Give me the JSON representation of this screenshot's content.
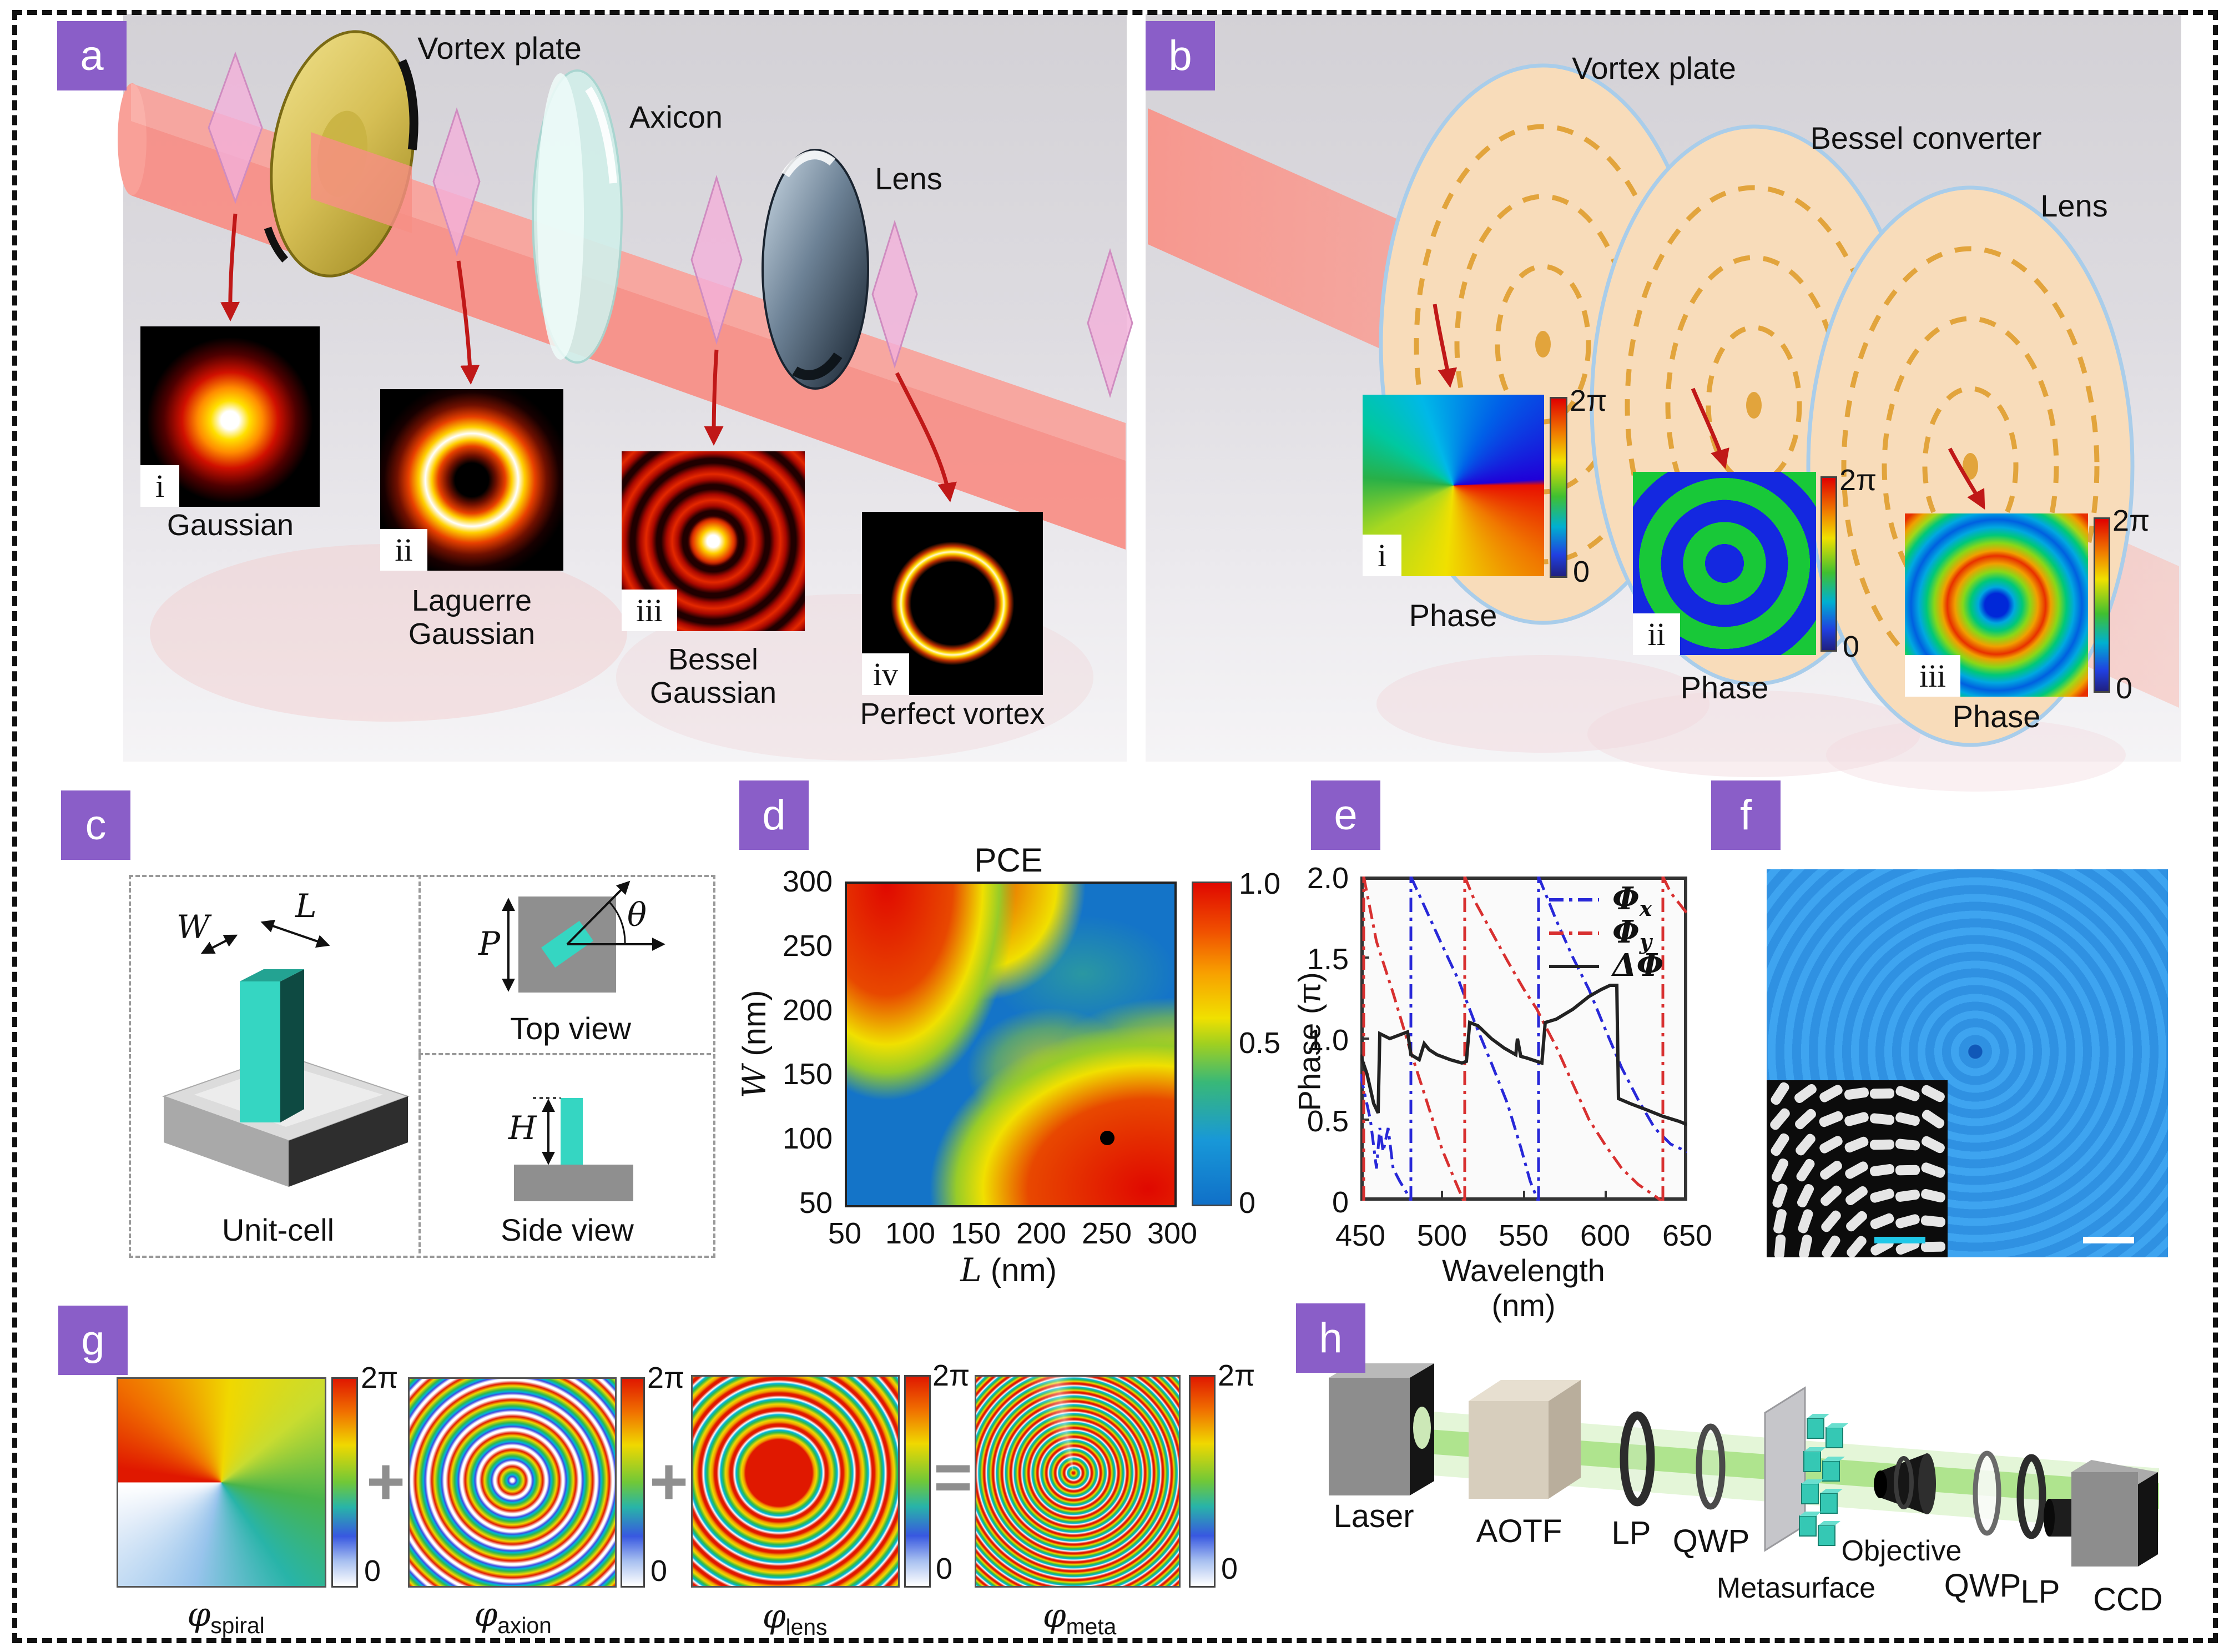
{
  "colors": {
    "accent_purple": "#8a5ec8",
    "beam_red": "#f88e85",
    "beam_green": "#a8e286",
    "metasurface_teal": "#35d6c2",
    "scene_gray": "#d3d1d6",
    "heatmap_blue": "#1474c8",
    "heatmap_red": "#e00800",
    "microscope_blue": "#3ea4f0"
  },
  "panels": {
    "a": {
      "letter": "a",
      "optics": [
        "Vortex plate",
        "Axicon",
        "Lens"
      ],
      "beams": [
        {
          "num": "i",
          "label": "Gaussian",
          "label2": ""
        },
        {
          "num": "ii",
          "label": "Laguerre",
          "label2": "Gaussian"
        },
        {
          "num": "iii",
          "label": "Bessel",
          "label2": "Gaussian"
        },
        {
          "num": "iv",
          "label": "Perfect vortex",
          "label2": ""
        }
      ]
    },
    "b": {
      "letter": "b",
      "optics": [
        "Vortex plate",
        "Bessel converter",
        "Lens"
      ],
      "phases": [
        {
          "num": "i",
          "caption": "Phase",
          "cb_max": "2π",
          "cb_min": "0"
        },
        {
          "num": "ii",
          "caption": "Phase",
          "cb_max": "2π",
          "cb_min": "0"
        },
        {
          "num": "iii",
          "caption": "Phase",
          "cb_max": "2π",
          "cb_min": "0"
        }
      ]
    },
    "c": {
      "letter": "c",
      "labels": {
        "W": "W",
        "L": "L",
        "P": "P",
        "theta": "θ",
        "H": "H"
      },
      "captions": [
        "Unit-cell",
        "Top view",
        "Side view"
      ]
    },
    "d": {
      "letter": "d",
      "title": "PCE",
      "xlabel_sym": "L",
      "xlabel_unit": "(nm)",
      "ylabel_sym": "W",
      "ylabel_unit": "(nm)",
      "xticks": [
        "50",
        "100",
        "150",
        "200",
        "250",
        "300"
      ],
      "yticks": [
        "300",
        "250",
        "200",
        "150",
        "100",
        "50"
      ],
      "cb_ticks": [
        "1.0",
        "0.5",
        "0"
      ]
    },
    "e": {
      "letter": "e",
      "xlabel": "Wavelength (nm)",
      "ylabel": "Phase (π)",
      "xticks": [
        "450",
        "500",
        "550",
        "600",
        "650"
      ],
      "yticks": [
        "2.0",
        "1.5",
        "1.0",
        "0.5",
        "0"
      ],
      "legend": [
        {
          "sym": "Φ",
          "sub": "x"
        },
        {
          "sym": "Φ",
          "sub": "y"
        },
        {
          "sym": "ΔΦ",
          "sub": ""
        }
      ]
    },
    "f": {
      "letter": "f"
    },
    "g": {
      "letter": "g",
      "terms": [
        {
          "sym": "φ",
          "sub": "spiral"
        },
        {
          "sym": "φ",
          "sub": "axion"
        },
        {
          "sym": "φ",
          "sub": "lens"
        },
        {
          "sym": "φ",
          "sub": "meta"
        }
      ],
      "operators": [
        "+",
        "+",
        "="
      ],
      "cb_max": "2π",
      "cb_min": "0"
    },
    "h": {
      "letter": "h",
      "components": [
        "Laser",
        "AOTF",
        "LP",
        "QWP",
        "Metasurface",
        "Objective",
        "QWP",
        "LP",
        "CCD"
      ]
    }
  },
  "chart_data": [
    {
      "type": "heatmap",
      "panel": "d",
      "title": "PCE",
      "xlabel": "L (nm)",
      "ylabel": "W (nm)",
      "xlim": [
        50,
        300
      ],
      "ylim": [
        50,
        300
      ],
      "colorbar": {
        "min": 0,
        "max": 1.0,
        "ticks": [
          0,
          0.5,
          1.0
        ]
      },
      "marked_point": {
        "L": 245,
        "W": 100
      },
      "grid": {
        "L": [
          50,
          100,
          150,
          200,
          250,
          300
        ],
        "W": [
          300,
          250,
          200,
          150,
          100,
          50
        ],
        "PCE": [
          [
            1.0,
            1.0,
            0.9,
            0.35,
            0.3,
            0.35
          ],
          [
            1.0,
            1.0,
            0.6,
            0.35,
            0.3,
            0.4
          ],
          [
            0.8,
            0.95,
            0.5,
            0.3,
            0.35,
            0.5
          ],
          [
            0.45,
            0.55,
            0.35,
            0.45,
            0.6,
            0.9
          ],
          [
            0.25,
            0.3,
            0.35,
            0.75,
            1.0,
            1.0
          ],
          [
            0.2,
            0.25,
            0.4,
            0.7,
            0.95,
            1.0
          ]
        ]
      }
    },
    {
      "type": "line",
      "panel": "e",
      "xlabel": "Wavelength (nm)",
      "ylabel": "Phase (π)",
      "xlim": [
        450,
        650
      ],
      "ylim": [
        0,
        2.0
      ],
      "legend_position": "top-right",
      "grid": false,
      "series": [
        {
          "name": "Φx",
          "style": "blue dash-dot",
          "points": [
            [
              450,
              0.78
            ],
            [
              456,
              0.5
            ],
            [
              460,
              0.2
            ],
            [
              462,
              0.45
            ],
            [
              467,
              0.45
            ],
            [
              470,
              0.2
            ],
            [
              478,
              0.05
            ],
            [
              481,
              0
            ],
            [
              481,
              2
            ],
            [
              500,
              1.58
            ],
            [
              520,
              1.1
            ],
            [
              540,
              0.6
            ],
            [
              554,
              0.12
            ],
            [
              559,
              0
            ],
            [
              559,
              2
            ],
            [
              570,
              1.73
            ],
            [
              590,
              1.3
            ],
            [
              610,
              0.82
            ],
            [
              630,
              0.45
            ],
            [
              650,
              0.3
            ]
          ]
        },
        {
          "name": "Φy",
          "style": "red dash-dot",
          "points": [
            [
              452,
              0
            ],
            [
              452,
              2
            ],
            [
              460,
              1.6
            ],
            [
              480,
              0.95
            ],
            [
              500,
              0.32
            ],
            [
              513,
              0
            ],
            [
              514,
              2
            ],
            [
              530,
              1.66
            ],
            [
              550,
              1.3
            ],
            [
              570,
              0.95
            ],
            [
              590,
              0.5
            ],
            [
              610,
              0.2
            ],
            [
              634,
              0
            ],
            [
              635,
              2
            ],
            [
              650,
              1.77
            ]
          ]
        },
        {
          "name": "ΔΦ",
          "style": "black solid",
          "points": [
            [
              450,
              0.9
            ],
            [
              458,
              0.6
            ],
            [
              461,
              0.54
            ],
            [
              462,
              1.03
            ],
            [
              479,
              1.04
            ],
            [
              486,
              0.87
            ],
            [
              489,
              0.97
            ],
            [
              497,
              0.9
            ],
            [
              512,
              0.85
            ],
            [
              517,
              1.1
            ],
            [
              530,
              1.0
            ],
            [
              545,
              0.9
            ],
            [
              546,
              1.0
            ],
            [
              552,
              0.88
            ],
            [
              561,
              0.85
            ],
            [
              563,
              1.1
            ],
            [
              580,
              1.18
            ],
            [
              600,
              1.33
            ],
            [
              607,
              1.33
            ],
            [
              608,
              0.63
            ],
            [
              625,
              0.56
            ],
            [
              650,
              0.47
            ]
          ]
        }
      ]
    }
  ]
}
